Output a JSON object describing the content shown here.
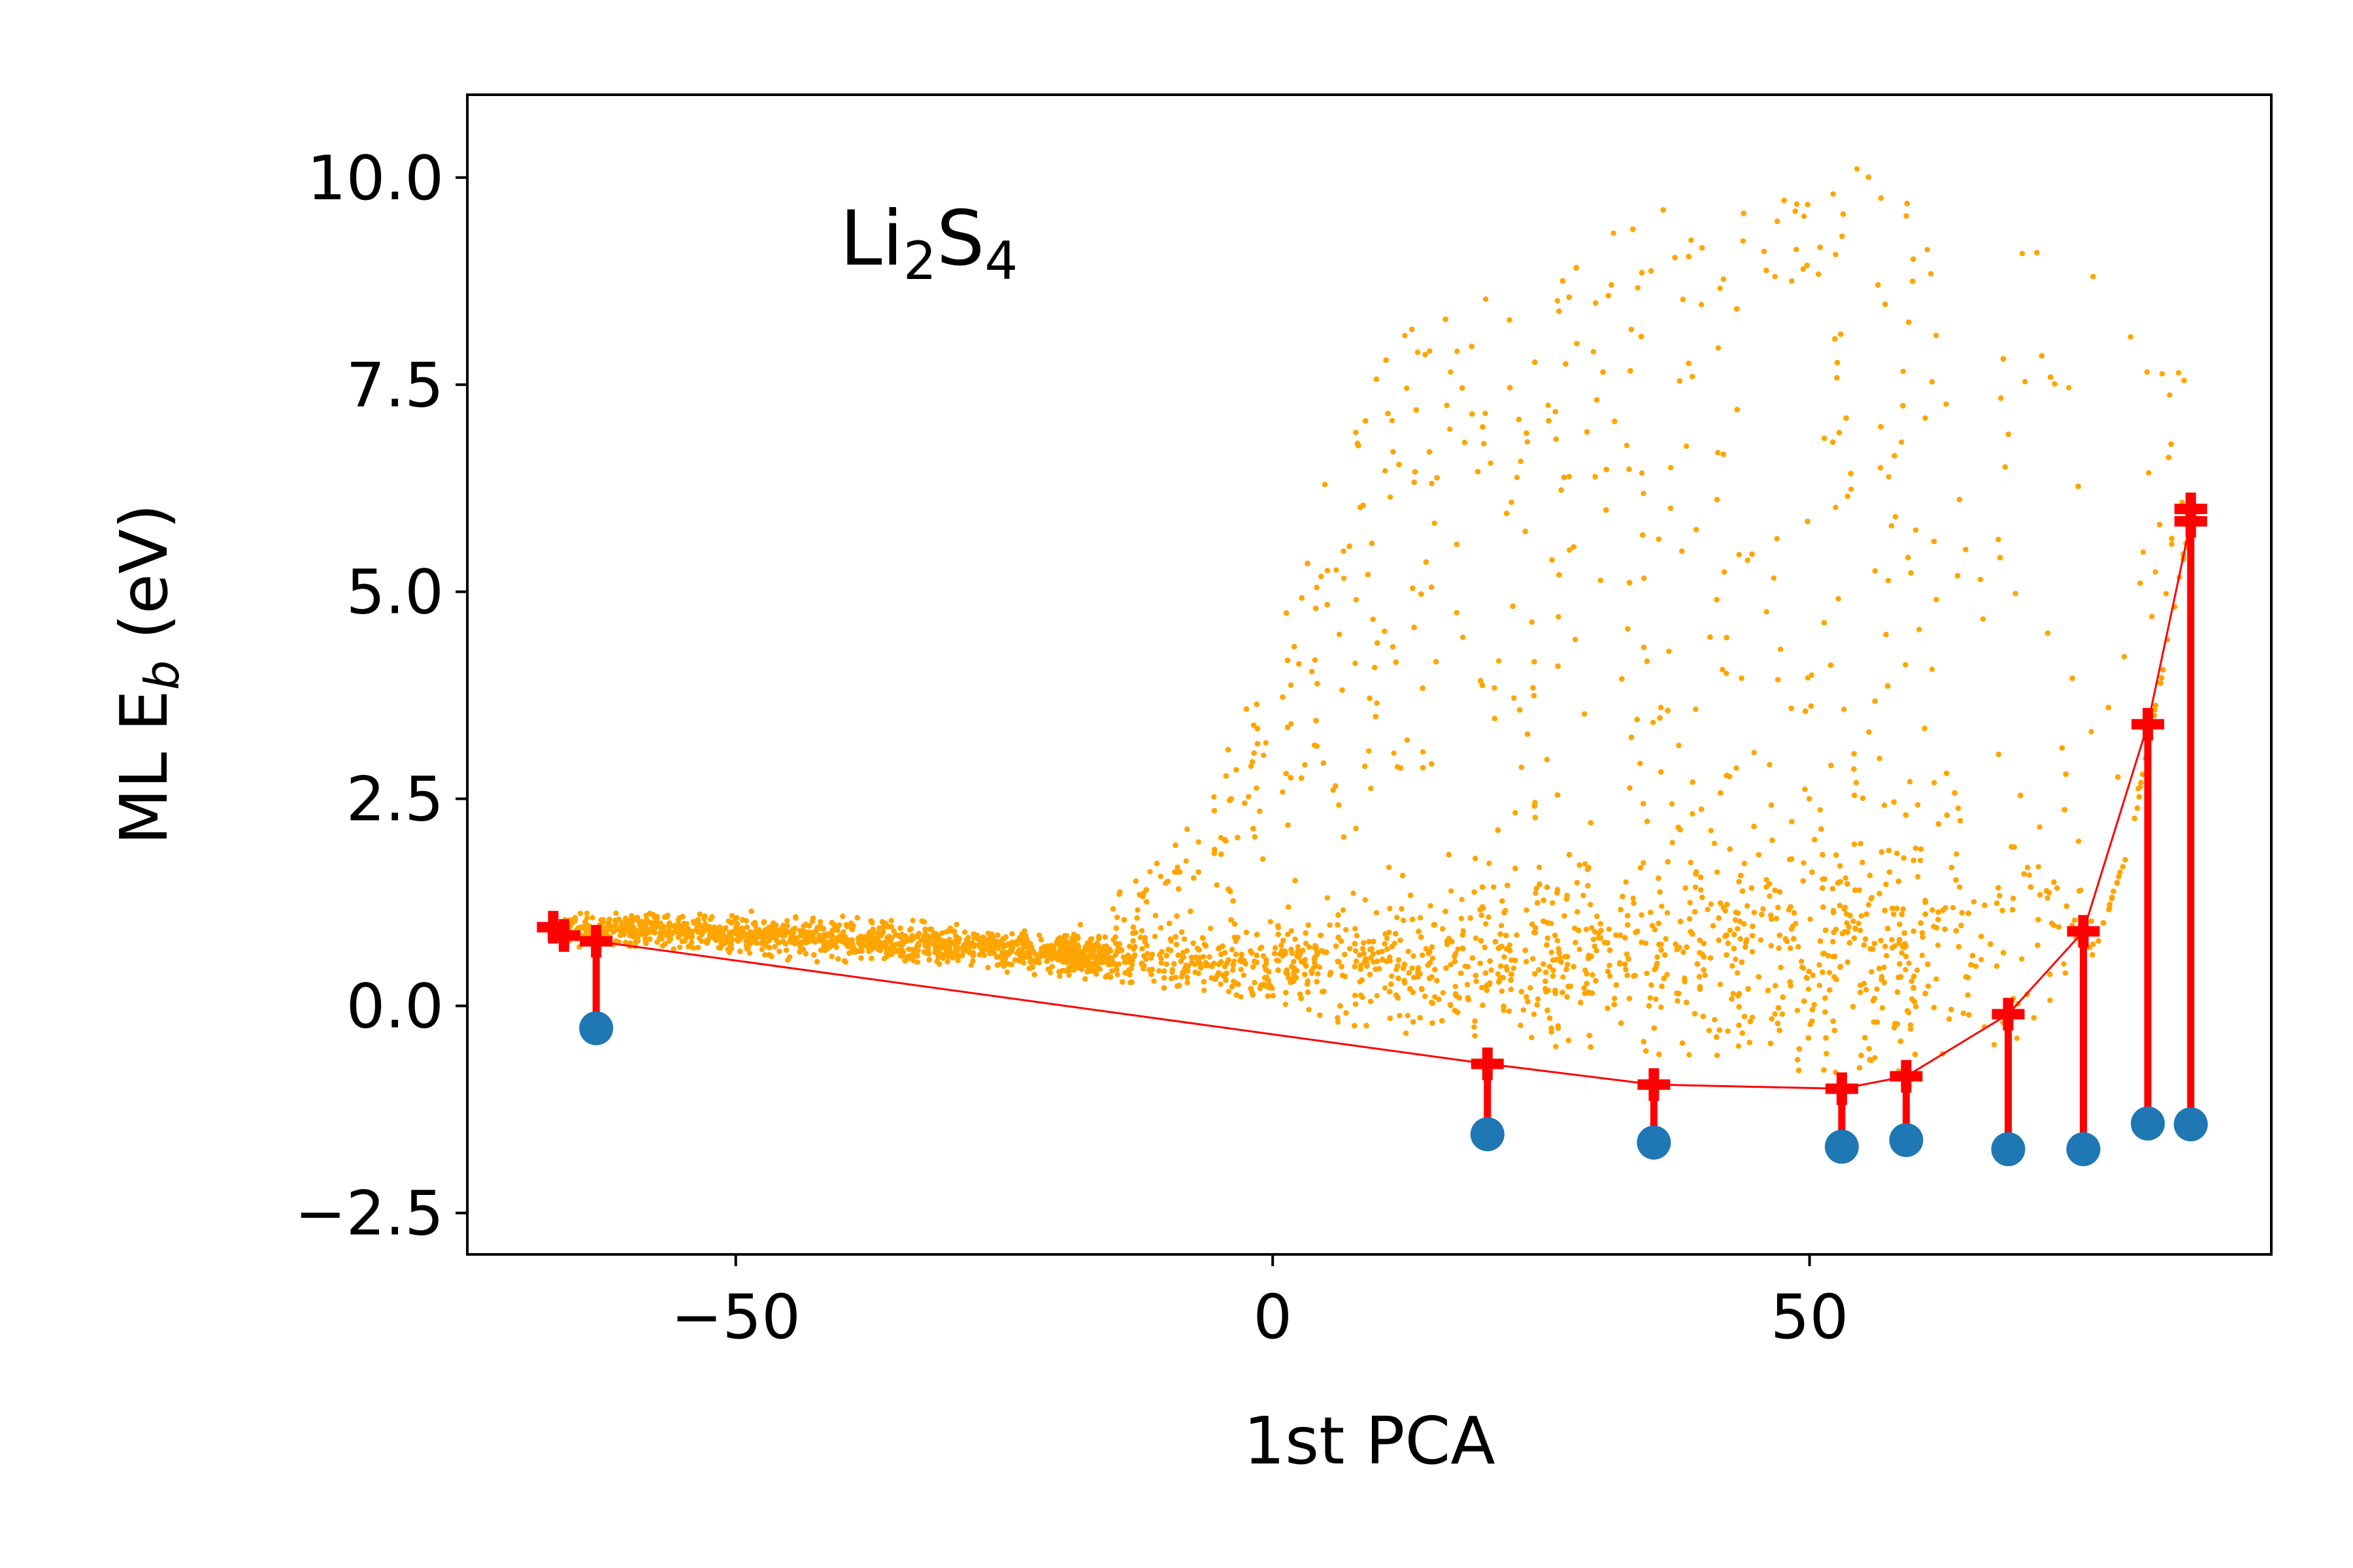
{
  "chart_data": {
    "type": "scatter",
    "xlabel": "1st PCA",
    "ylabel": {
      "base": "ML E",
      "sub": "b",
      "unit": " (eV)"
    },
    "annotation": {
      "base1": "Li",
      "sub1": "2",
      "base2": "S",
      "sub2": "4"
    },
    "xlim": [
      -75,
      93
    ],
    "ylim": [
      -3.0,
      11.0
    ],
    "xticks": [
      -50,
      0,
      50
    ],
    "xtick_labels": [
      "−50",
      "0",
      "50"
    ],
    "yticks": [
      -2.5,
      0.0,
      2.5,
      5.0,
      7.5,
      10.0
    ],
    "ytick_labels": [
      "−2.5",
      "0.0",
      "2.5",
      "5.0",
      "7.5",
      "10.0"
    ],
    "grid": false,
    "legend": "none",
    "colors": {
      "scatter": "#ffa500",
      "hull": "#ff0000",
      "dft": "#1f77b4"
    },
    "sampled_points": {
      "description_free": true,
      "x": [
        -60,
        -50,
        -40,
        -30,
        -20,
        -10,
        -5,
        0,
        5,
        10,
        15,
        20,
        25,
        30,
        35,
        40,
        45,
        50,
        55,
        60,
        65,
        70,
        75,
        80,
        85
      ],
      "y_center": [
        0.92,
        0.87,
        0.8,
        0.72,
        0.62,
        0.55,
        0.5,
        0.5,
        0.5,
        0.5,
        0.55,
        0.6,
        0.6,
        0.6,
        0.65,
        0.7,
        0.7,
        0.7,
        0.8,
        0.8,
        0.8,
        0.8,
        0.8,
        0.8,
        0.8
      ],
      "y_min": [
        0.7,
        0.6,
        0.5,
        0.45,
        0.35,
        0.2,
        0.15,
        0.0,
        -0.2,
        -0.3,
        -0.4,
        -0.4,
        -0.5,
        -0.5,
        -0.6,
        -0.7,
        -0.7,
        -0.8,
        -0.9,
        -0.9,
        -0.7,
        -0.5,
        0.0,
        2.0,
        5.5
      ],
      "y_max": [
        1.2,
        1.15,
        1.1,
        1.0,
        1.0,
        1.8,
        2.8,
        4.6,
        6.5,
        7.8,
        8.5,
        8.9,
        8.3,
        9.5,
        9.6,
        9.8,
        9.6,
        10.2,
        10.1,
        9.6,
        9.6,
        9.2,
        9.0,
        8.6,
        7.6
      ]
    },
    "hull": {
      "x": [
        -67,
        -66,
        -63,
        20,
        35.5,
        53,
        59,
        68.5,
        75.5,
        81.5,
        85.5,
        85.5
      ],
      "y": [
        0.95,
        0.85,
        0.78,
        -0.7,
        -0.95,
        -1.0,
        -0.85,
        -0.1,
        0.9,
        3.4,
        5.85,
        6.0
      ]
    },
    "dft_points": {
      "x": [
        -63,
        20,
        35.5,
        53,
        59,
        68.5,
        75.5,
        81.5,
        85.5
      ],
      "y": [
        -0.27,
        -1.55,
        -1.65,
        -1.7,
        -1.62,
        -1.73,
        -1.73,
        -1.42,
        -1.43
      ]
    },
    "bars": [
      {
        "x": -63,
        "y1": 0.78,
        "y2": -0.27
      },
      {
        "x": 20,
        "y1": -0.7,
        "y2": -1.55
      },
      {
        "x": 35.5,
        "y1": -0.95,
        "y2": -1.65
      },
      {
        "x": 53,
        "y1": -1.0,
        "y2": -1.7
      },
      {
        "x": 59,
        "y1": -0.85,
        "y2": -1.62
      },
      {
        "x": 68.5,
        "y1": -0.1,
        "y2": -1.73
      },
      {
        "x": 75.5,
        "y1": 0.9,
        "y2": -1.73
      },
      {
        "x": 81.5,
        "y1": 3.4,
        "y2": -1.42
      },
      {
        "x": 85.5,
        "y1": 5.85,
        "y2": -1.43
      }
    ]
  }
}
